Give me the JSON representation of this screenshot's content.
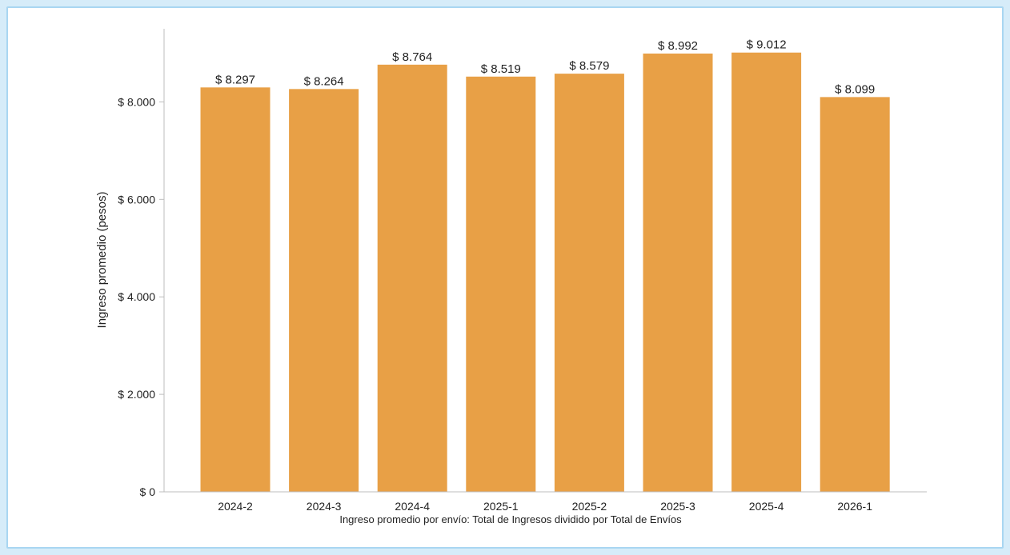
{
  "colors": {
    "bar": "#e8a046",
    "axis": "#bdbdbd",
    "frame": "#a9d6f2",
    "background": "#d6ecf9"
  },
  "chart_data": {
    "type": "bar",
    "categories": [
      "2024-2",
      "2024-3",
      "2024-4",
      "2025-1",
      "2025-2",
      "2025-3",
      "2025-4",
      "2026-1"
    ],
    "values": [
      8297,
      8264,
      8764,
      8519,
      8579,
      8992,
      9012,
      8099
    ],
    "value_labels": [
      "$ 8.297",
      "$ 8.264",
      "$ 8.764",
      "$ 8.519",
      "$ 8.579",
      "$ 8.992",
      "$ 9.012",
      "$ 8.099"
    ],
    "ylabel": "Ingreso promedio (pesos)",
    "xlabel": "Ingreso promedio por envío: Total de Ingresos dividido por Total de Envíos",
    "ylim": [
      0,
      9500
    ],
    "yticks": [
      0,
      2000,
      4000,
      6000,
      8000
    ],
    "ytick_labels": [
      "$ 0",
      "$ 2.000",
      "$ 4.000",
      "$ 6.000",
      "$ 8.000"
    ],
    "grid": false,
    "legend": "none"
  }
}
